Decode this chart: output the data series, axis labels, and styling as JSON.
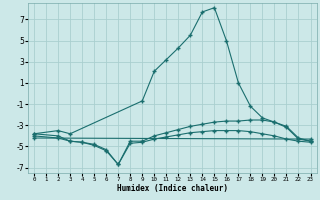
{
  "xlabel": "Humidex (Indice chaleur)",
  "bg_color": "#cce8e8",
  "grid_color": "#aacfcf",
  "line_color": "#1a6e6e",
  "xlim": [
    -0.5,
    23.5
  ],
  "ylim": [
    -7.5,
    8.5
  ],
  "yticks": [
    -7,
    -5,
    -3,
    -1,
    1,
    3,
    5,
    7
  ],
  "xticks": [
    0,
    1,
    2,
    3,
    4,
    5,
    6,
    7,
    8,
    9,
    10,
    11,
    12,
    13,
    14,
    15,
    16,
    17,
    18,
    19,
    20,
    21,
    22,
    23
  ],
  "s0x": [
    0,
    2,
    3,
    9,
    10,
    11,
    12,
    13,
    14,
    15,
    16,
    17,
    18,
    19,
    20,
    21,
    22,
    23
  ],
  "s0y": [
    -3.8,
    -3.5,
    -3.8,
    -0.7,
    2.1,
    3.2,
    4.3,
    5.5,
    7.7,
    8.1,
    5.0,
    1.0,
    -1.2,
    -2.3,
    -2.7,
    -3.2,
    -4.3,
    -4.5
  ],
  "s1x": [
    0,
    2,
    3,
    4,
    5,
    6,
    7,
    8,
    9,
    10,
    11,
    12,
    13,
    14,
    15,
    16,
    17,
    18,
    19,
    20,
    21,
    22,
    23
  ],
  "s1y": [
    -3.8,
    -4.0,
    -4.5,
    -4.6,
    -4.8,
    -5.3,
    -6.7,
    -4.5,
    -4.5,
    -4.0,
    -3.7,
    -3.4,
    -3.1,
    -2.9,
    -2.7,
    -2.6,
    -2.6,
    -2.5,
    -2.5,
    -2.7,
    -3.1,
    -4.2,
    -4.5
  ],
  "s2x": [
    0,
    2,
    3,
    4,
    5,
    6,
    7,
    8,
    9,
    10,
    11,
    12,
    13,
    14,
    15,
    16,
    17,
    18,
    19,
    20,
    21,
    22,
    23
  ],
  "s2y": [
    -4.0,
    -4.2,
    -4.5,
    -4.6,
    -4.9,
    -5.4,
    -6.7,
    -4.7,
    -4.6,
    -4.3,
    -4.1,
    -3.9,
    -3.7,
    -3.6,
    -3.5,
    -3.5,
    -3.5,
    -3.6,
    -3.8,
    -4.0,
    -4.3,
    -4.5,
    -4.6
  ],
  "s3x": [
    0,
    23
  ],
  "s3y": [
    -4.2,
    -4.3
  ]
}
